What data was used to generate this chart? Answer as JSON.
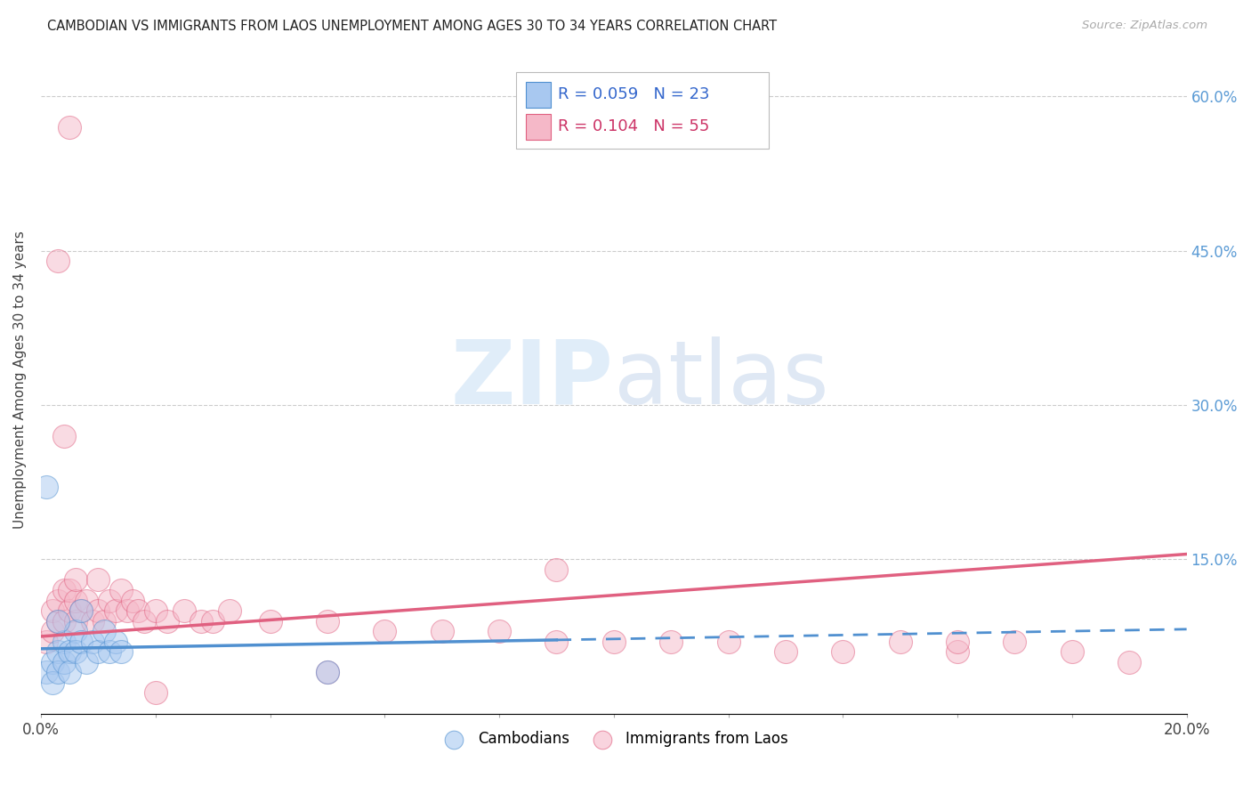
{
  "title": "CAMBODIAN VS IMMIGRANTS FROM LAOS UNEMPLOYMENT AMONG AGES 30 TO 34 YEARS CORRELATION CHART",
  "source": "Source: ZipAtlas.com",
  "ylabel": "Unemployment Among Ages 30 to 34 years",
  "xlim": [
    0.0,
    0.2
  ],
  "ylim": [
    0.0,
    0.65
  ],
  "color_blue": "#a8c8f0",
  "color_pink": "#f5b8c8",
  "color_blue_edge": "#5090d0",
  "color_pink_edge": "#e06080",
  "color_blue_line": "#5090d0",
  "color_pink_line": "#e06080",
  "color_right_ticks": "#5b9bd5",
  "watermark_color": "#ddeeff",
  "cam_x": [
    0.001,
    0.002,
    0.002,
    0.003,
    0.003,
    0.004,
    0.004,
    0.005,
    0.005,
    0.006,
    0.006,
    0.007,
    0.008,
    0.009,
    0.01,
    0.011,
    0.012,
    0.013,
    0.014,
    0.001,
    0.003,
    0.007,
    0.05
  ],
  "cam_y": [
    0.04,
    0.05,
    0.03,
    0.06,
    0.04,
    0.07,
    0.05,
    0.06,
    0.04,
    0.08,
    0.06,
    0.07,
    0.05,
    0.07,
    0.06,
    0.08,
    0.06,
    0.07,
    0.06,
    0.22,
    0.09,
    0.1,
    0.04
  ],
  "laos_x": [
    0.001,
    0.002,
    0.002,
    0.003,
    0.003,
    0.004,
    0.004,
    0.005,
    0.005,
    0.006,
    0.006,
    0.006,
    0.007,
    0.008,
    0.009,
    0.01,
    0.011,
    0.012,
    0.013,
    0.014,
    0.015,
    0.016,
    0.017,
    0.018,
    0.02,
    0.022,
    0.025,
    0.028,
    0.03,
    0.033,
    0.04,
    0.05,
    0.06,
    0.07,
    0.08,
    0.09,
    0.1,
    0.11,
    0.12,
    0.13,
    0.14,
    0.15,
    0.16,
    0.17,
    0.18,
    0.19,
    0.01,
    0.05,
    0.003,
    0.004,
    0.005,
    0.02,
    0.09,
    0.16
  ],
  "laos_y": [
    0.07,
    0.08,
    0.1,
    0.09,
    0.11,
    0.09,
    0.12,
    0.1,
    0.12,
    0.09,
    0.11,
    0.13,
    0.1,
    0.11,
    0.09,
    0.1,
    0.09,
    0.11,
    0.1,
    0.12,
    0.1,
    0.11,
    0.1,
    0.09,
    0.1,
    0.09,
    0.1,
    0.09,
    0.09,
    0.1,
    0.09,
    0.09,
    0.08,
    0.08,
    0.08,
    0.07,
    0.07,
    0.07,
    0.07,
    0.06,
    0.06,
    0.07,
    0.06,
    0.07,
    0.06,
    0.05,
    0.13,
    0.04,
    0.44,
    0.27,
    0.57,
    0.02,
    0.14,
    0.07
  ],
  "blue_line_solid_end": 0.09,
  "blue_line_start_y": 0.063,
  "blue_line_end_y_solid": 0.068,
  "blue_line_end_y_dashed": 0.082,
  "pink_line_start_y": 0.075,
  "pink_line_end_y": 0.155
}
